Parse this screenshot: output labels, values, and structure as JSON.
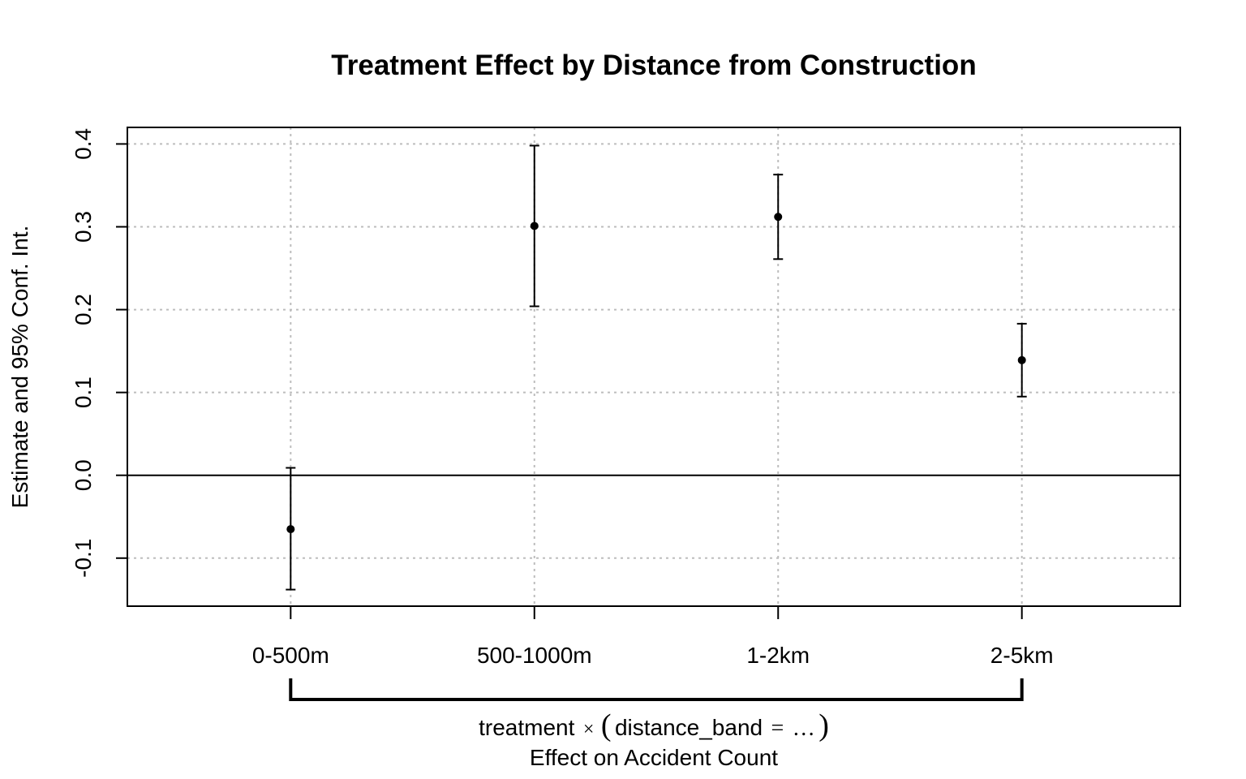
{
  "chart_data": {
    "type": "scatter",
    "title": "Treatment Effect by Distance from Construction",
    "ylabel": "Estimate and 95% Conf. Int.",
    "categories": [
      "0-500m",
      "500-1000m",
      "1-2km",
      "2-5km"
    ],
    "estimates": [
      -0.065,
      0.301,
      0.312,
      0.139
    ],
    "ci_lower": [
      -0.138,
      0.204,
      0.261,
      0.095
    ],
    "ci_upper": [
      0.009,
      0.398,
      0.363,
      0.183
    ],
    "yticks": [
      -0.1,
      0.0,
      0.1,
      0.2,
      0.3,
      0.4
    ],
    "ytick_labels": [
      "-0.1",
      "0.0",
      "0.1",
      "0.2",
      "0.3",
      "0.4"
    ],
    "ylim": [
      -0.158,
      0.42
    ],
    "xlim": [
      0.33,
      4.65
    ],
    "grid": true,
    "reference_line": 0,
    "group_label": {
      "prefix": "treatment",
      "times": "×",
      "open": "(",
      "inner": "distance_band",
      "equals": "=",
      "ellipsis": "…",
      "close": ")"
    },
    "xlabel": "Effect on Accident Count"
  }
}
